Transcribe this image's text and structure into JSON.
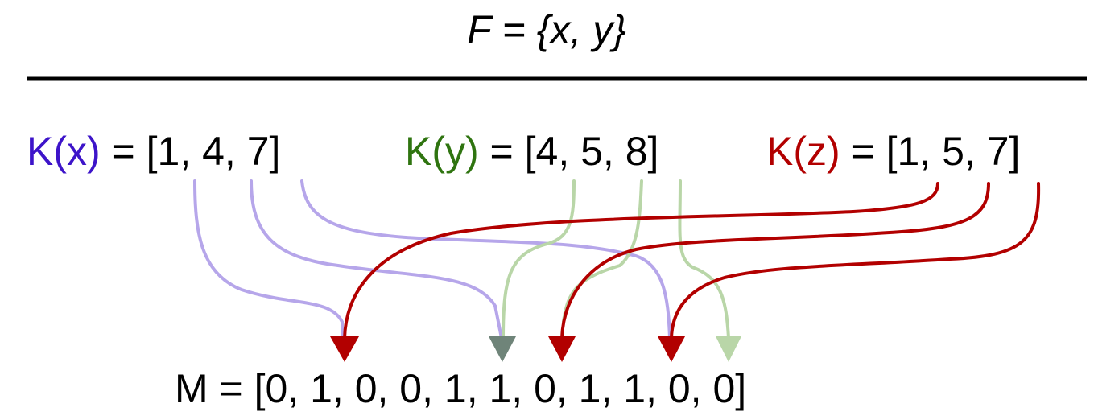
{
  "title": "F = {x, y}",
  "keys": [
    {
      "name": "x",
      "label": "K(x)",
      "equals": " = ",
      "values_text": "[1, 4, 7]",
      "values": [
        1,
        4,
        7
      ],
      "color": "#3d14c9",
      "arrow_color": "#b6a6ea",
      "faded": true
    },
    {
      "name": "y",
      "label": "K(y)",
      "equals": " = ",
      "values_text": "[4, 5, 8]",
      "values": [
        4,
        5,
        8
      ],
      "color": "#2f7410",
      "arrow_color": "#b9d6a8",
      "faded": true
    },
    {
      "name": "z",
      "label": "K(z)",
      "equals": " = ",
      "values_text": "[1, 5, 7]",
      "values": [
        1,
        5,
        7
      ],
      "color": "#b20000",
      "arrow_color": "#b20000",
      "faded": false
    }
  ],
  "result": {
    "label": "M",
    "equals": " = ",
    "values_text": "[0, 1, 0, 0, 1, 1, 0, 1, 1, 0, 0]",
    "values": [
      0,
      1,
      0,
      0,
      1,
      1,
      0,
      1,
      1,
      0,
      0
    ]
  },
  "colors": {
    "divider": "#000000",
    "overlap_arrowhead": "#6f8479"
  }
}
